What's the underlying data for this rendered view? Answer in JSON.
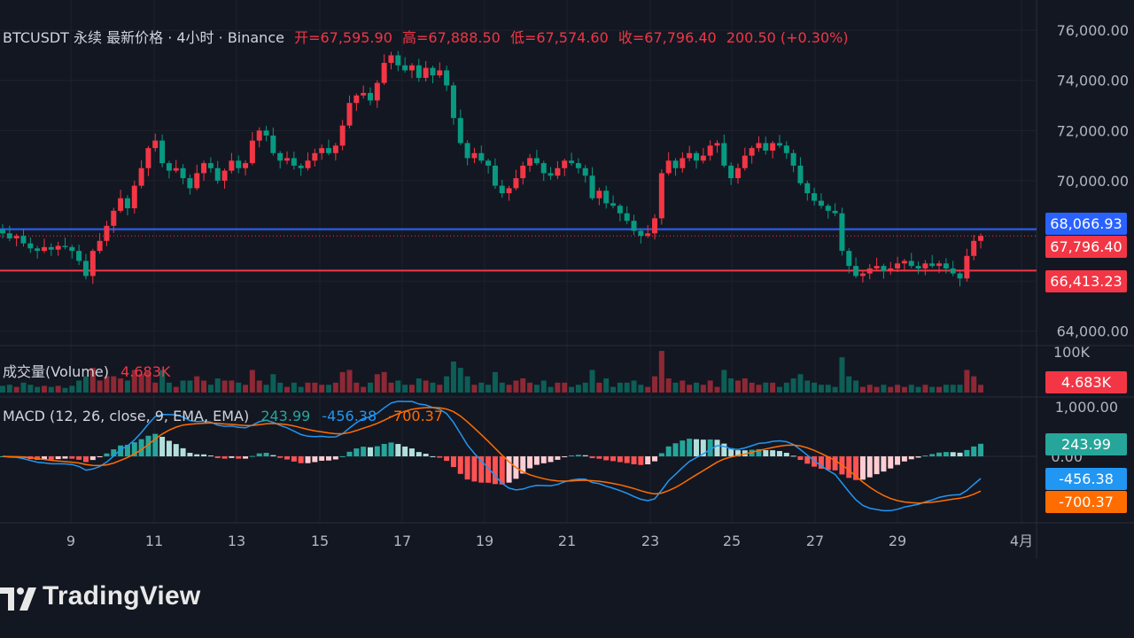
{
  "header": {
    "symbol": "BTCUSDT 永续 最新价格 · 4小时 · Binance",
    "open": "开=67,595.90",
    "high": "高=67,888.50",
    "low": "低=67,574.60",
    "close": "收=67,796.40",
    "change": "200.50 (+0.30%)"
  },
  "volume_legend": {
    "name": "成交量(Volume)",
    "value": "4.683K"
  },
  "macd_legend": {
    "name": "MACD (12, 26, close, 9, EMA, EMA)",
    "hist": "243.99",
    "macd": "-456.38",
    "signal": "-700.37"
  },
  "price_tags": {
    "upper_line": "68,066.93",
    "last": "67,796.40",
    "lower_line": "66,413.23",
    "volume": "4.683K",
    "hist": "243.99",
    "macd": "-456.38",
    "signal": "-700.37"
  },
  "brand": {
    "name": "TradingView"
  },
  "colors": {
    "up": "#f23645",
    "down": "#089981",
    "blue_line": "#2962ff",
    "red_line": "#f23645",
    "macd_line": "#2196f3",
    "signal_line": "#ff6d00",
    "bg": "#131722"
  },
  "chart_data": {
    "type": "candlestick",
    "y_axis_ticks": [
      "76,000.00",
      "74,000.00",
      "72,000.00",
      "70,000.00",
      "64,000.00"
    ],
    "ylim": [
      63600,
      76500
    ],
    "volume_axis_tick": "100K",
    "macd_axis_ticks": [
      "1,000.00",
      "0.00"
    ],
    "x_ticks": [
      "9",
      "11",
      "13",
      "15",
      "17",
      "19",
      "21",
      "23",
      "25",
      "27",
      "29",
      "4月"
    ],
    "horizontal_lines": [
      68066.93,
      66413.23
    ],
    "close_series": [
      67900,
      67700,
      67800,
      67500,
      67300,
      67200,
      67350,
      67250,
      67400,
      67350,
      67200,
      66800,
      66200,
      67200,
      67600,
      68200,
      68800,
      69300,
      68900,
      69800,
      70500,
      71300,
      71600,
      70700,
      70400,
      70500,
      70100,
      69700,
      70300,
      70700,
      70500,
      70000,
      70400,
      70800,
      70500,
      70700,
      71600,
      72000,
      71800,
      71100,
      70800,
      70900,
      70600,
      70500,
      70800,
      71100,
      71300,
      71100,
      71400,
      72200,
      73100,
      73400,
      73500,
      73200,
      73900,
      74700,
      75000,
      74600,
      74400,
      74600,
      74100,
      74500,
      74200,
      74400,
      73800,
      72500,
      71500,
      70900,
      71100,
      70800,
      70600,
      69800,
      69500,
      69700,
      70100,
      70600,
      70900,
      70700,
      70300,
      70200,
      70500,
      70800,
      70700,
      70500,
      70200,
      69300,
      69600,
      69100,
      69000,
      68700,
      68400,
      68000,
      67800,
      67900,
      68500,
      70300,
      70800,
      70500,
      70900,
      71100,
      70800,
      71000,
      71400,
      71500,
      70600,
      70100,
      70500,
      71000,
      71300,
      71500,
      71200,
      71500,
      71400,
      71100,
      70600,
      69900,
      69500,
      69200,
      69000,
      68800,
      68700,
      67200,
      66600,
      66200,
      66300,
      66500,
      66600,
      66400,
      66500,
      66700,
      66800,
      66600,
      66500,
      66700,
      66600,
      66700,
      66500,
      66300,
      66100,
      67000,
      67600,
      67796
    ]
  }
}
